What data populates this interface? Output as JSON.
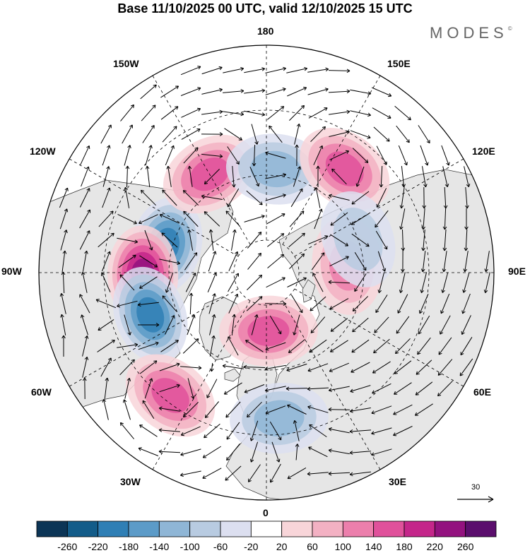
{
  "title": "Base 11/10/2025 00 UTC, valid 12/10/2025 15 UTC",
  "brand": "MODES",
  "brand_mark": "©",
  "longitude_labels": {
    "lon_180": "180",
    "lon_150e": "150E",
    "lon_120e": "120E",
    "lon_90e": "90E",
    "lon_60e": "60E",
    "lon_30e": "30E",
    "lon_0": "0",
    "lon_30w": "30W",
    "lon_60w": "60W",
    "lon_90w": "90W",
    "lon_120w": "120W",
    "lon_150w": "150W"
  },
  "reference_vector": "30",
  "colorbar": {
    "labels": [
      "-260",
      "-220",
      "-180",
      "-140",
      "-100",
      "-60",
      "-20",
      "20",
      "60",
      "100",
      "140",
      "180",
      "220",
      "260"
    ],
    "colors": [
      "#0c3556",
      "#135c89",
      "#2f7fb5",
      "#5c9bc8",
      "#8fb6d6",
      "#b8cbe1",
      "#dcdff0",
      "#ffffff",
      "#f8d5d9",
      "#f3b1c3",
      "#ec7fac",
      "#e0519b",
      "#c4268a",
      "#93127f",
      "#5b0e6d"
    ]
  },
  "map": {
    "anomalies": [
      {
        "id": "neg-north-america",
        "sign": "negative",
        "lat": 58,
        "lon": -105,
        "strength": 180
      },
      {
        "id": "pos-hudson",
        "sign": "positive",
        "lat": 52,
        "lon": -89,
        "strength": 230
      },
      {
        "id": "neg-labrador",
        "sign": "negative",
        "lat": 52,
        "lon": -70,
        "strength": 180
      },
      {
        "id": "pos-north-atlantic",
        "sign": "positive",
        "lat": 42,
        "lon": -38,
        "strength": 160
      },
      {
        "id": "pos-scandinavia",
        "sign": "positive",
        "lat": 72,
        "lon": 2,
        "strength": 150
      },
      {
        "id": "pos-alaska",
        "sign": "positive",
        "lat": 55,
        "lon": -150,
        "strength": 140
      },
      {
        "id": "neg-bering",
        "sign": "negative",
        "lat": 58,
        "lon": 175,
        "strength": 120
      },
      {
        "id": "pos-okhotsk",
        "sign": "positive",
        "lat": 50,
        "lon": 143,
        "strength": 170
      },
      {
        "id": "pos-west-siberia",
        "sign": "positive",
        "lat": 65,
        "lon": 95,
        "strength": 130
      },
      {
        "id": "neg-central-siberia",
        "sign": "negative",
        "lat": 60,
        "lon": 110,
        "strength": 80
      },
      {
        "id": "neg-europe",
        "sign": "negative",
        "lat": 45,
        "lon": 5,
        "strength": 100
      }
    ]
  }
}
